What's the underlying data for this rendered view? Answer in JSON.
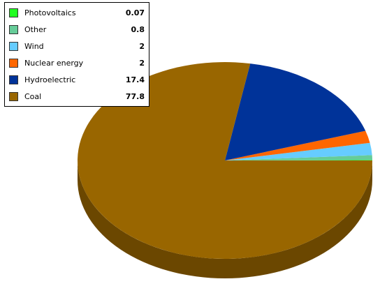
{
  "chart_data": {
    "type": "pie",
    "title": "",
    "slices": [
      {
        "label": "Photovoltaics",
        "value": 0.07,
        "color": "#22ff22",
        "side": "#14a014"
      },
      {
        "label": "Other",
        "value": 0.8,
        "color": "#66cc99",
        "side": "#3f8a64"
      },
      {
        "label": "Wind",
        "value": 2,
        "color": "#66ccff",
        "side": "#3d8ab5"
      },
      {
        "label": "Nuclear energy",
        "value": 2,
        "color": "#ff6600",
        "side": "#b04400"
      },
      {
        "label": "Hydroelectric",
        "value": 17.4,
        "color": "#003399",
        "side": "#001f5c"
      },
      {
        "label": "Coal",
        "value": 77.8,
        "color": "#996600",
        "side": "#6b4700"
      }
    ],
    "legend_position": "top-left",
    "style": "3d"
  }
}
